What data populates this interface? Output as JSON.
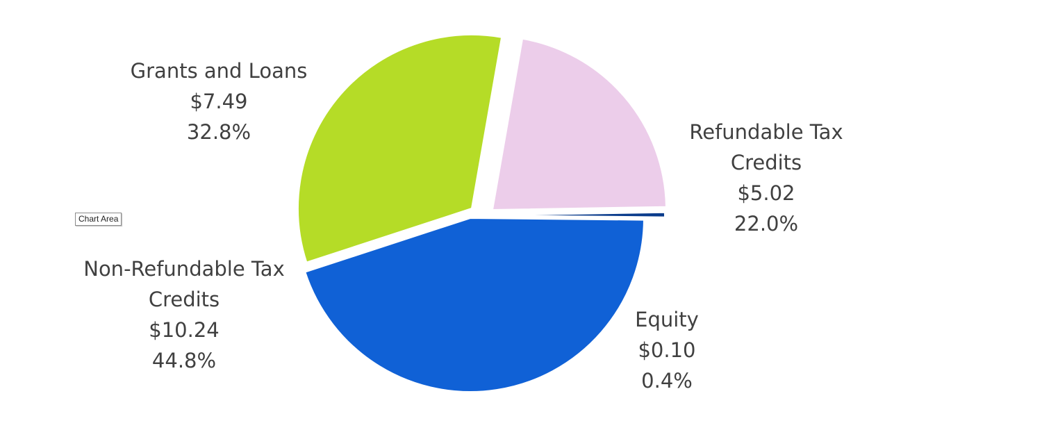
{
  "chart_data": {
    "type": "pie",
    "title": "",
    "slices": [
      {
        "name": "Grants and Loans",
        "value": 7.49,
        "value_label": "$7.49",
        "percent": 32.8,
        "percent_label": "32.8%",
        "color": "#b5dc27"
      },
      {
        "name": "Refundable Tax Credits",
        "value": 5.02,
        "value_label": "$5.02",
        "percent": 22.0,
        "percent_label": "22.0%",
        "color": "#eccdea"
      },
      {
        "name": "Equity",
        "value": 0.1,
        "value_label": "$0.10",
        "percent": 0.4,
        "percent_label": "0.4%",
        "color": "#0b3c8c"
      },
      {
        "name": "Non-Refundable Tax Credits",
        "value": 10.24,
        "value_label": "$10.24",
        "percent": 44.8,
        "percent_label": "44.8%",
        "color": "#1061d6"
      }
    ],
    "legend": "none"
  },
  "labels": {
    "grants": {
      "l1": "Grants and Loans",
      "value": "$7.49",
      "percent": "32.8%"
    },
    "refundable": {
      "l1": "Refundable Tax",
      "l2": "Credits",
      "value": "$5.02",
      "percent": "22.0%"
    },
    "nonrefundable": {
      "l1": "Non-Refundable Tax",
      "l2": "Credits",
      "value": "$10.24",
      "percent": "44.8%"
    },
    "equity": {
      "l1": "Equity",
      "value": "$0.10",
      "percent": "0.4%"
    }
  },
  "tooltip": {
    "text": "Chart Area"
  }
}
